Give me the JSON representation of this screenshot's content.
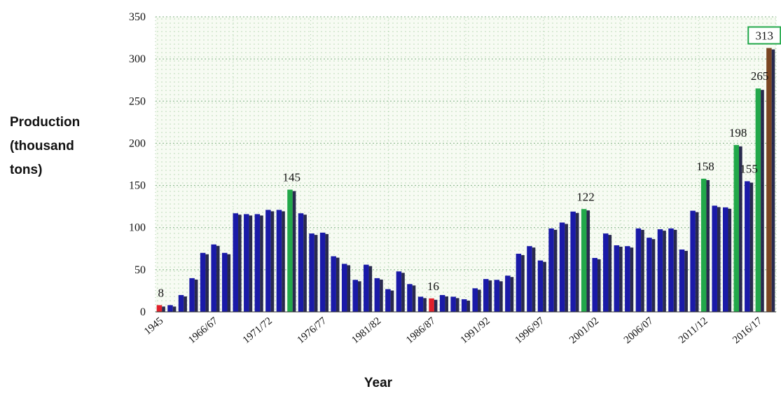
{
  "chart_data": {
    "type": "bar",
    "title": "",
    "ylabel": "Production\n(thousand\ntons)",
    "xlabel": "Year",
    "ylim": [
      0,
      350
    ],
    "yticks": [
      0,
      50,
      100,
      150,
      200,
      250,
      300,
      350
    ],
    "grid": true,
    "legend": "none",
    "categories": [
      "1945",
      "",
      "",
      "",
      "",
      "1966/67",
      "",
      "",
      "",
      "",
      "1971/72",
      "",
      "",
      "",
      "",
      "1976/77",
      "",
      "",
      "",
      "",
      "1981/82",
      "",
      "",
      "",
      "",
      "1986/87",
      "",
      "",
      "",
      "",
      "1991/92",
      "",
      "",
      "",
      "",
      "1996/97",
      "",
      "",
      "",
      "",
      "2001/02",
      "",
      "",
      "",
      "",
      "2006/07",
      "",
      "",
      "",
      "",
      "2011/12",
      "",
      "",
      "",
      "",
      "2016/17",
      ""
    ],
    "values": [
      8,
      8,
      20,
      40,
      70,
      80,
      70,
      117,
      116,
      116,
      121,
      121,
      145,
      117,
      93,
      94,
      66,
      57,
      38,
      56,
      40,
      27,
      48,
      33,
      18,
      16,
      20,
      18,
      15,
      28,
      39,
      38,
      43,
      69,
      78,
      61,
      99,
      106,
      119,
      122,
      64,
      93,
      79,
      78,
      99,
      88,
      98,
      99,
      74,
      120,
      158,
      126,
      124,
      198,
      155,
      265,
      313
    ],
    "bar_colors": {
      "default": "#1a1aa8",
      "low": "#e0202a",
      "high": "#22a84a",
      "latest": "#7a4522"
    },
    "highlight_low_index": [
      0,
      25
    ],
    "highlight_high_index": [
      12,
      39,
      50,
      53,
      55
    ],
    "highlight_latest_index": [
      56
    ],
    "data_labels": [
      {
        "index": 0,
        "text": "8"
      },
      {
        "index": 12,
        "text": "145"
      },
      {
        "index": 25,
        "text": "16"
      },
      {
        "index": 39,
        "text": "122"
      },
      {
        "index": 50,
        "text": "158"
      },
      {
        "index": 53,
        "text": "198"
      },
      {
        "index": 54,
        "text": "155"
      },
      {
        "index": 55,
        "text": "265"
      },
      {
        "index": 56,
        "text": "313",
        "boxed": true
      }
    ],
    "box_color": "#22a84a",
    "plot_background": "#f7fbf3",
    "dot_color": "#b9d8b3"
  }
}
